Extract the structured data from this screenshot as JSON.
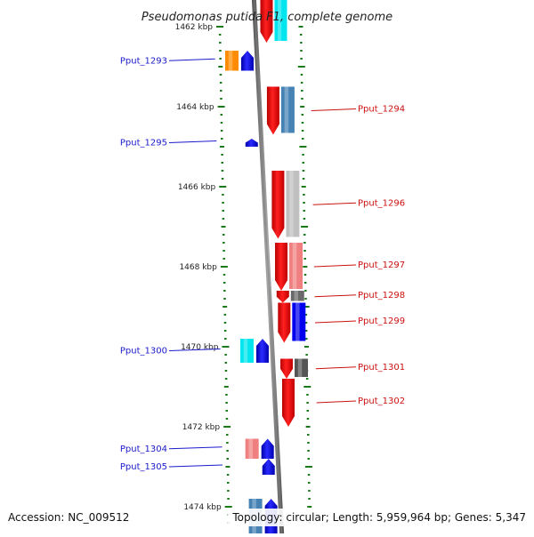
{
  "title": "Pseudomonas putida F1, complete genome",
  "accession": "Accession: NC_009512",
  "topology": "Topology: circular; Length: 5,959,964 bp; Genes: 5,347",
  "colors": {
    "backbone": "#808080",
    "tick": "#1a7a1a",
    "label_left": "#1a1acc",
    "label_right": "#cc1111",
    "forward_strand": "#ff0000",
    "reverse_strand": "#0000ff"
  },
  "ticks": [
    {
      "label": "1462 kbp",
      "kbp": 1462
    },
    {
      "label": "1464 kbp",
      "kbp": 1464
    },
    {
      "label": "1466 kbp",
      "kbp": 1466
    },
    {
      "label": "1468 kbp",
      "kbp": 1468
    },
    {
      "label": "1470 kbp",
      "kbp": 1470
    },
    {
      "label": "1472 kbp",
      "kbp": 1472
    },
    {
      "label": "1474 kbp",
      "kbp": 1474
    }
  ],
  "genes": [
    {
      "name": "Pput_1293",
      "side": "left",
      "start_kbp": 1462.6,
      "end_kbp": 1463.1,
      "cog_color": "#ff8c00"
    },
    {
      "name": "Pput_1294",
      "side": "right",
      "start_kbp": 1463.5,
      "end_kbp": 1464.7,
      "cog_color": "#4682b4"
    },
    {
      "name": "Pput_1295",
      "side": "left",
      "start_kbp": 1464.8,
      "end_kbp": 1465.0,
      "cog_color": ""
    },
    {
      "name": "Pput_1296",
      "side": "right",
      "start_kbp": 1465.6,
      "end_kbp": 1467.3,
      "cog_color": "#c0c0c0"
    },
    {
      "name": "Pput_1297",
      "side": "right",
      "start_kbp": 1467.4,
      "end_kbp": 1468.6,
      "cog_color": "#f08080"
    },
    {
      "name": "Pput_1298",
      "side": "right",
      "start_kbp": 1468.6,
      "end_kbp": 1468.9,
      "cog_color": "#696969"
    },
    {
      "name": "Pput_1299",
      "side": "right",
      "start_kbp": 1468.9,
      "end_kbp": 1469.9,
      "cog_color": "#0000ee"
    },
    {
      "name": "Pput_1300",
      "side": "left",
      "start_kbp": 1469.8,
      "end_kbp": 1470.4,
      "cog_color": "#00e5ee"
    },
    {
      "name": "Pput_1301",
      "side": "right",
      "start_kbp": 1470.3,
      "end_kbp": 1470.8,
      "cog_color": "#555555"
    },
    {
      "name": "Pput_1302",
      "side": "right",
      "start_kbp": 1470.8,
      "end_kbp": 1472.0,
      "cog_color": ""
    },
    {
      "name": "Pput_1304",
      "side": "left",
      "start_kbp": 1472.3,
      "end_kbp": 1472.8,
      "cog_color": "#f08080"
    },
    {
      "name": "Pput_1305",
      "side": "left",
      "start_kbp": 1472.8,
      "end_kbp": 1473.2,
      "cog_color": ""
    }
  ]
}
